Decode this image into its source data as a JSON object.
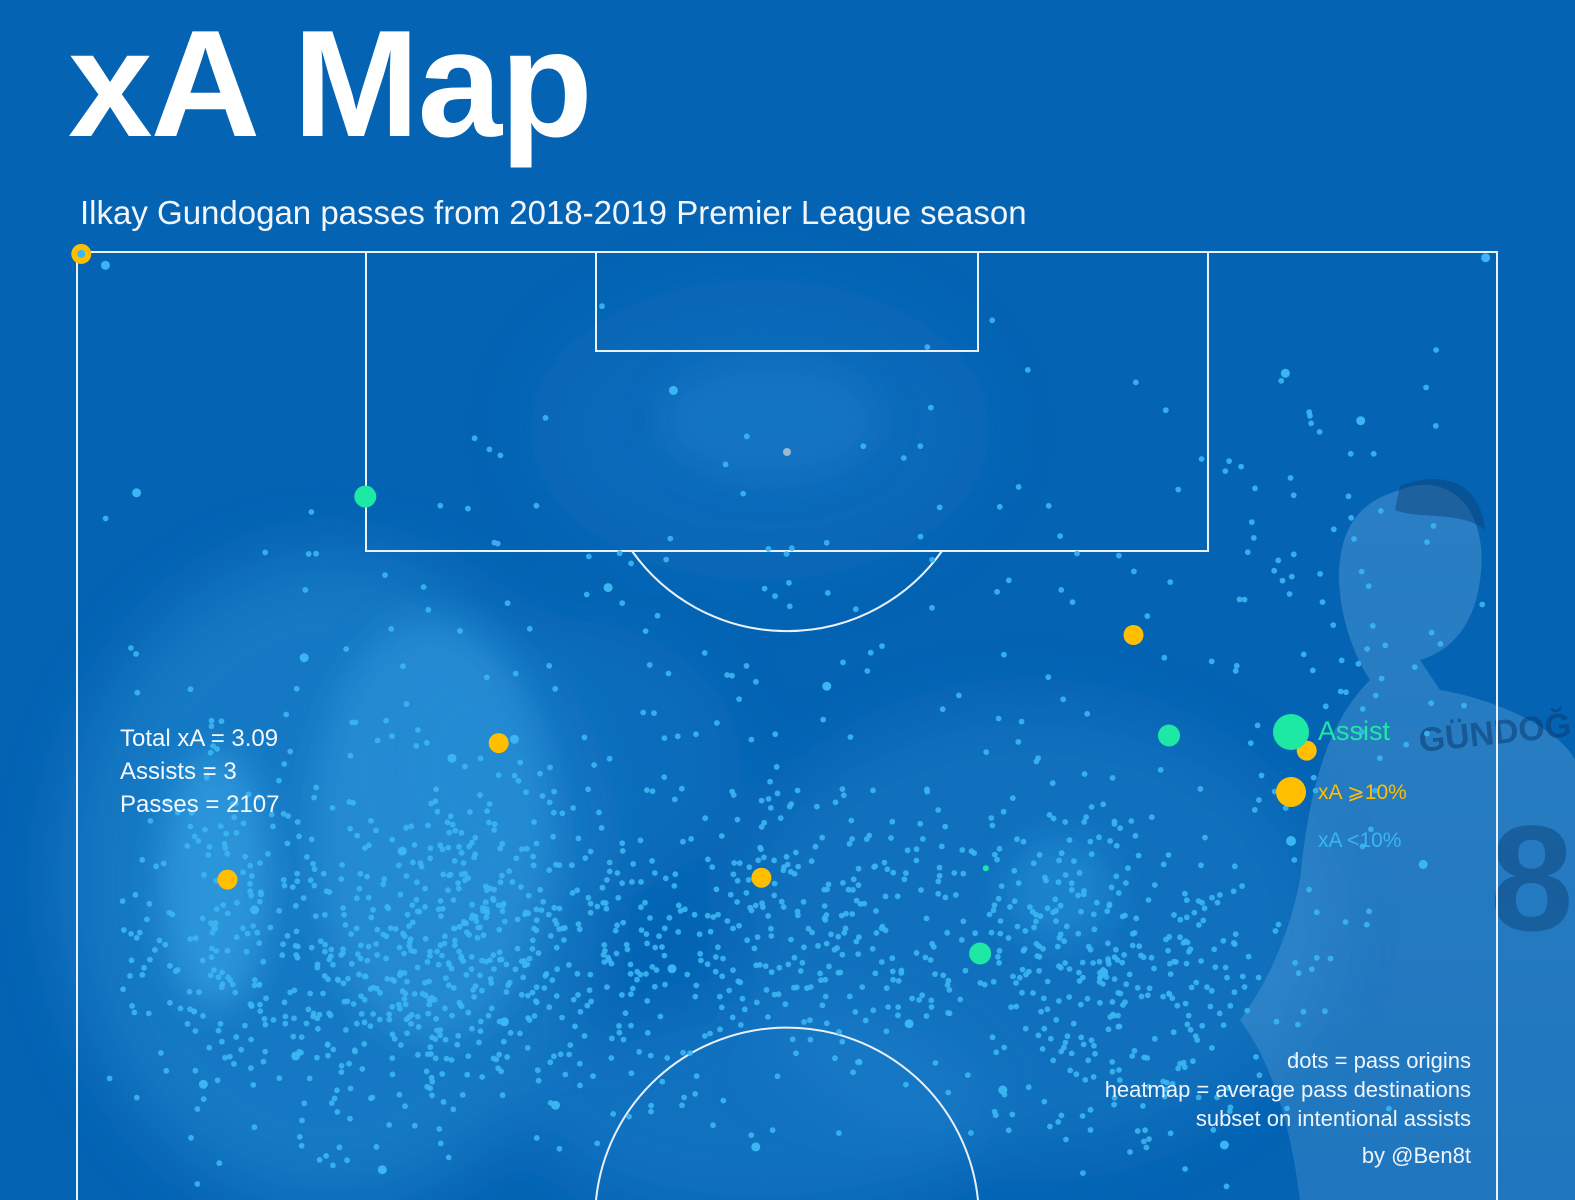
{
  "title": "xA Map",
  "subtitle": "Ilkay Gundogan passes from 2018-2019 Premier League season",
  "stats": {
    "total_xa": "Total xA = 3.09",
    "assists": "Assists = 3",
    "passes": "Passes = 2107"
  },
  "legend": {
    "assist": "Assist",
    "xa_high": "xA ⩾10%",
    "xa_low": "xA <10%"
  },
  "notes": {
    "line1": "dots = pass origins",
    "line2": "heatmap = average pass destinations",
    "line3": "subset on intentional assists",
    "credit": "by @Ben8t"
  },
  "colors": {
    "background": "#0463b3",
    "assist": "#1de9a4",
    "xa_high": "#ffbf00",
    "xa_low": "#3bb6f2",
    "pitch_lines": "#e9f1fa",
    "heat": "#45b6ef"
  },
  "chart_data": {
    "type": "scatter",
    "title": "xA Map",
    "subtitle": "Ilkay Gundogan passes from 2018-2019 Premier League season",
    "xlabel": "",
    "ylabel": "",
    "pitch": "half-pitch, attacking goal at top",
    "xlim": [
      0,
      100
    ],
    "ylim": [
      50,
      100
    ],
    "total_passes": 2107,
    "total_xa": 3.09,
    "assists_count": 3,
    "series": [
      {
        "name": "Assist",
        "points": [
          [
            20.3,
            87.1
          ],
          [
            76.9,
            74.5
          ],
          [
            63.6,
            63.0
          ]
        ]
      },
      {
        "name": "xA ⩾10%",
        "points": [
          [
            0.3,
            99.9
          ],
          [
            74.4,
            79.8
          ],
          [
            86.6,
            73.7
          ],
          [
            29.7,
            74.1
          ],
          [
            10.6,
            66.9
          ],
          [
            48.2,
            67.0
          ]
        ]
      },
      {
        "name": "xA <10%",
        "note": "low-xA pass origins (representative sample)",
        "points": [
          [
            2.0,
            99.3
          ],
          [
            4.2,
            87.3
          ],
          [
            22.9,
            68.4
          ],
          [
            30.8,
            74.3
          ],
          [
            42.0,
            92.7
          ],
          [
            26.4,
            73.3
          ],
          [
            52.8,
            77.1
          ],
          [
            99.2,
            99.7
          ],
          [
            85.1,
            93.6
          ],
          [
            90.4,
            91.1
          ],
          [
            12.5,
            65.3
          ],
          [
            58.6,
            59.3
          ],
          [
            37.4,
            82.3
          ],
          [
            16.0,
            78.6
          ],
          [
            94.8,
            67.7
          ],
          [
            72.3,
            62.0
          ],
          [
            30.1,
            59.4
          ],
          [
            8.9,
            56.1
          ],
          [
            65.2,
            55.8
          ],
          [
            80.8,
            52.9
          ],
          [
            21.5,
            51.6
          ],
          [
            47.8,
            52.8
          ],
          [
            33.7,
            55.0
          ],
          [
            15.4,
            57.6
          ],
          [
            41.9,
            62.2
          ]
        ]
      }
    ],
    "heatmap": "average pass destinations (kernel density contours)"
  }
}
